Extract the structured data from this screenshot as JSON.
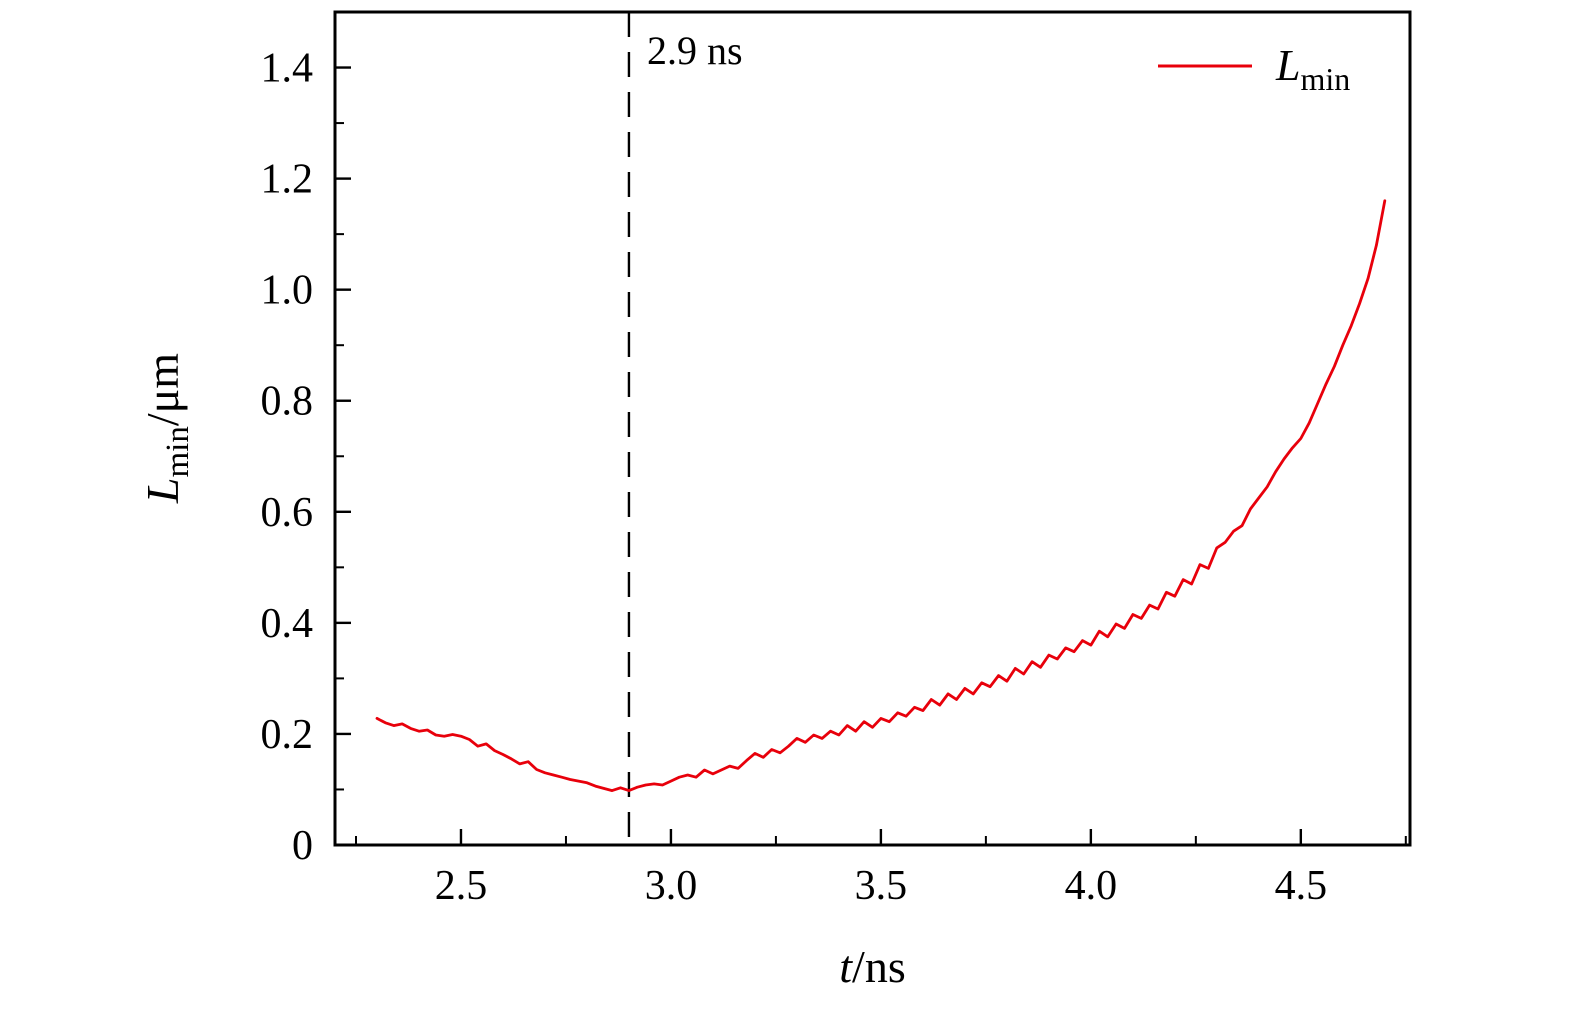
{
  "figure": {
    "background": "#ffffff",
    "axis_color": "#000000",
    "line_color": "#e8000b"
  },
  "chart_data": {
    "type": "line",
    "title": "",
    "xlabel": "t/ns",
    "ylabel": "L_min/μm",
    "xlabel_parts": [
      {
        "text": "t",
        "style": "italic"
      },
      {
        "text": "/ns"
      }
    ],
    "ylabel_parts": [
      {
        "text": "L",
        "style": "italic"
      },
      {
        "text": "min",
        "sub": true
      },
      {
        "text": "/μm"
      }
    ],
    "xlim": [
      2.2,
      4.76
    ],
    "ylim": [
      0,
      1.5
    ],
    "grid": false,
    "xticks": [
      2.5,
      3.0,
      3.5,
      4.0,
      4.5
    ],
    "xtick_labels": [
      "2.5",
      "3.0",
      "3.5",
      "4.0",
      "4.5"
    ],
    "xticks_minor": [
      2.25,
      2.75,
      3.25,
      3.75,
      4.25,
      4.75
    ],
    "yticks": [
      0,
      0.2,
      0.4,
      0.6,
      0.8,
      1.0,
      1.2,
      1.4
    ],
    "ytick_labels": [
      "0",
      "0.2",
      "0.4",
      "0.6",
      "0.8",
      "1.0",
      "1.2",
      "1.4"
    ],
    "yticks_minor": [
      0.1,
      0.3,
      0.5,
      0.7,
      0.9,
      1.1,
      1.3
    ],
    "annotation": {
      "type": "vline",
      "x": 2.9,
      "label": "2.9 ns",
      "style": "dashed",
      "color": "#000000"
    },
    "legend": {
      "position": "top-right",
      "entries": [
        {
          "name": "Lmin",
          "label": "L_min",
          "label_parts": [
            {
              "text": "L",
              "style": "italic"
            },
            {
              "text": "min",
              "sub": true
            }
          ],
          "color": "#e8000b"
        }
      ]
    },
    "series": [
      {
        "name": "Lmin",
        "color": "#e8000b",
        "x": [
          2.3,
          2.32,
          2.34,
          2.36,
          2.38,
          2.4,
          2.42,
          2.44,
          2.46,
          2.48,
          2.5,
          2.52,
          2.54,
          2.56,
          2.58,
          2.6,
          2.62,
          2.64,
          2.66,
          2.68,
          2.7,
          2.72,
          2.74,
          2.76,
          2.78,
          2.8,
          2.82,
          2.84,
          2.86,
          2.88,
          2.9,
          2.92,
          2.94,
          2.96,
          2.98,
          3.0,
          3.02,
          3.04,
          3.06,
          3.08,
          3.1,
          3.12,
          3.14,
          3.16,
          3.18,
          3.2,
          3.22,
          3.24,
          3.26,
          3.28,
          3.3,
          3.32,
          3.34,
          3.36,
          3.38,
          3.4,
          3.42,
          3.44,
          3.46,
          3.48,
          3.5,
          3.52,
          3.54,
          3.56,
          3.58,
          3.6,
          3.62,
          3.64,
          3.66,
          3.68,
          3.7,
          3.72,
          3.74,
          3.76,
          3.78,
          3.8,
          3.82,
          3.84,
          3.86,
          3.88,
          3.9,
          3.92,
          3.94,
          3.96,
          3.98,
          4.0,
          4.02,
          4.04,
          4.06,
          4.08,
          4.1,
          4.12,
          4.14,
          4.16,
          4.18,
          4.2,
          4.22,
          4.24,
          4.26,
          4.28,
          4.3,
          4.32,
          4.34,
          4.36,
          4.38,
          4.4,
          4.42,
          4.44,
          4.46,
          4.48,
          4.5,
          4.52,
          4.54,
          4.56,
          4.58,
          4.6,
          4.62,
          4.64,
          4.66,
          4.68,
          4.7
        ],
        "y": [
          0.228,
          0.22,
          0.215,
          0.218,
          0.21,
          0.205,
          0.207,
          0.198,
          0.196,
          0.199,
          0.196,
          0.19,
          0.178,
          0.182,
          0.17,
          0.163,
          0.155,
          0.146,
          0.15,
          0.136,
          0.13,
          0.126,
          0.122,
          0.118,
          0.115,
          0.112,
          0.106,
          0.102,
          0.098,
          0.103,
          0.098,
          0.104,
          0.108,
          0.11,
          0.108,
          0.115,
          0.122,
          0.126,
          0.122,
          0.135,
          0.128,
          0.135,
          0.142,
          0.138,
          0.152,
          0.165,
          0.158,
          0.172,
          0.166,
          0.178,
          0.192,
          0.185,
          0.198,
          0.192,
          0.205,
          0.198,
          0.215,
          0.205,
          0.222,
          0.212,
          0.228,
          0.222,
          0.238,
          0.232,
          0.248,
          0.242,
          0.262,
          0.252,
          0.272,
          0.262,
          0.282,
          0.272,
          0.292,
          0.285,
          0.305,
          0.295,
          0.318,
          0.308,
          0.33,
          0.32,
          0.342,
          0.335,
          0.355,
          0.348,
          0.368,
          0.36,
          0.385,
          0.375,
          0.398,
          0.39,
          0.415,
          0.408,
          0.432,
          0.425,
          0.455,
          0.448,
          0.478,
          0.47,
          0.505,
          0.498,
          0.535,
          0.545,
          0.565,
          0.575,
          0.605,
          0.625,
          0.645,
          0.672,
          0.695,
          0.715,
          0.732,
          0.76,
          0.795,
          0.83,
          0.862,
          0.9,
          0.935,
          0.975,
          1.02,
          1.08,
          1.16
        ]
      }
    ]
  }
}
